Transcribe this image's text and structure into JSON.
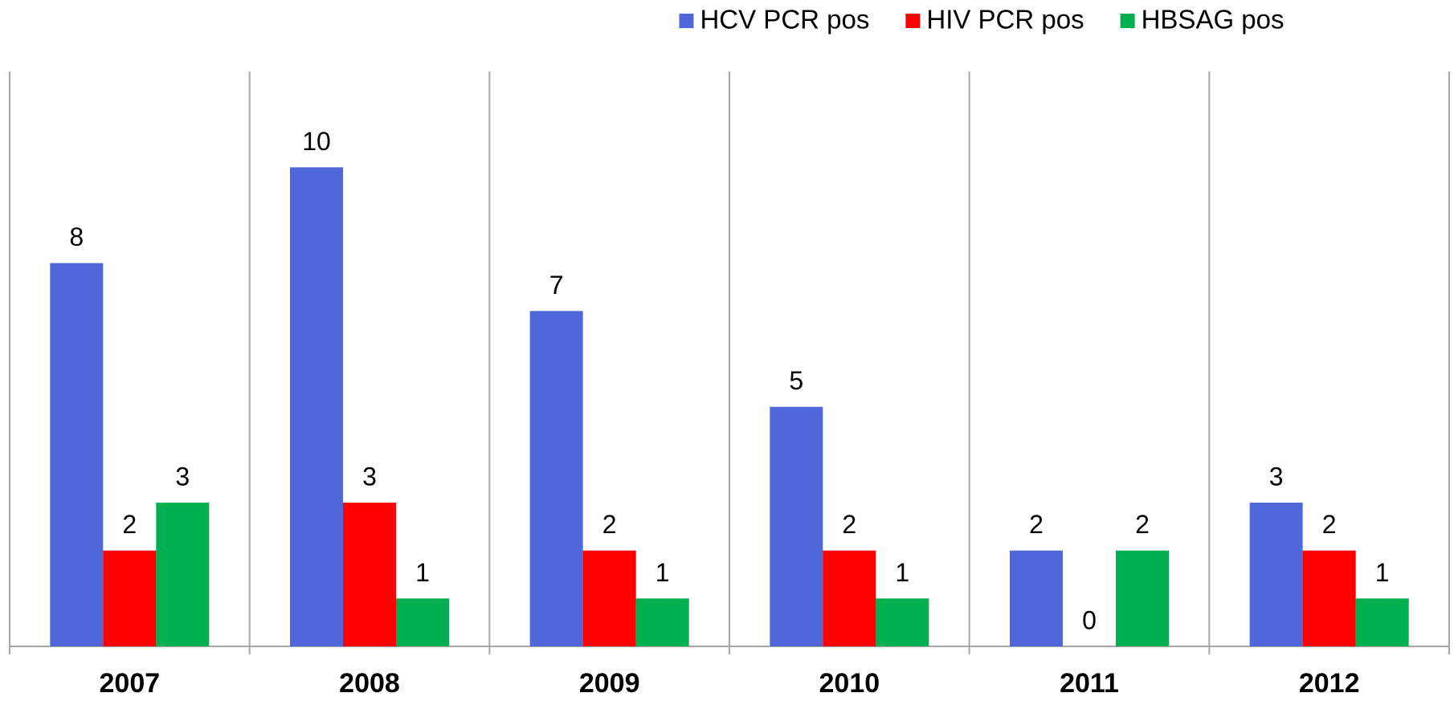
{
  "chart_data": {
    "type": "bar",
    "categories": [
      "2007",
      "2008",
      "2009",
      "2010",
      "2011",
      "2012"
    ],
    "series": [
      {
        "name": "HCV PCR pos",
        "color": "#4f67d9",
        "values": [
          8,
          10,
          7,
          5,
          2,
          3
        ]
      },
      {
        "name": "HIV PCR pos",
        "color": "#ff0000",
        "values": [
          2,
          3,
          2,
          2,
          0,
          2
        ]
      },
      {
        "name": "HBSAG pos",
        "color": "#00b050",
        "values": [
          3,
          1,
          1,
          1,
          2,
          1
        ]
      }
    ],
    "ylim": [
      0,
      12
    ],
    "legend": "top"
  }
}
